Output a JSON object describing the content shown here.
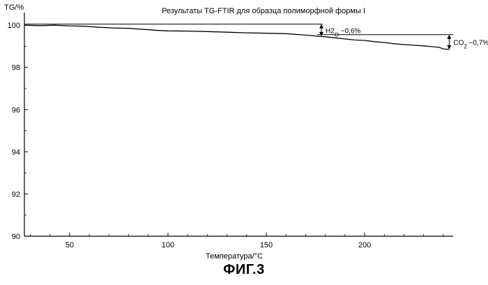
{
  "chart_data": {
    "type": "line",
    "title": "Результаты TG-FTIR для образца полиморфной формы I",
    "xlabel": "Температура/°С",
    "ylabel": "TG/%",
    "xlim": [
      27,
      245
    ],
    "ylim": [
      90,
      100.6
    ],
    "x_ticks": [
      50,
      100,
      150,
      200
    ],
    "y_ticks": [
      90,
      92,
      94,
      96,
      98,
      100
    ],
    "grid": false,
    "series": [
      {
        "x": [
          27,
          35,
          42,
          50,
          58,
          65,
          72,
          80,
          88,
          95,
          100,
          110,
          120,
          130,
          140,
          150,
          160,
          170,
          176,
          180,
          185,
          190,
          195,
          200,
          205,
          210,
          215,
          220,
          225,
          230,
          235,
          238,
          240,
          243
        ],
        "y": [
          100.0,
          99.98,
          100.0,
          99.97,
          99.95,
          99.9,
          99.87,
          99.85,
          99.8,
          99.75,
          99.73,
          99.72,
          99.7,
          99.67,
          99.64,
          99.62,
          99.6,
          99.53,
          99.48,
          99.45,
          99.4,
          99.35,
          99.3,
          99.28,
          99.22,
          99.18,
          99.12,
          99.08,
          99.05,
          99.02,
          98.98,
          98.95,
          98.88,
          98.85
        ]
      }
    ],
    "annotations": [
      {
        "label": "H2O",
        "value_text": "−0,6%",
        "x": 178,
        "y_top": 100.05,
        "y_bottom": 99.48
      },
      {
        "label": "CO2",
        "value_text": "−0,7%",
        "x": 243,
        "y_top": 99.55,
        "y_bottom": 98.85
      }
    ]
  },
  "figure_caption": "ФИГ.3"
}
